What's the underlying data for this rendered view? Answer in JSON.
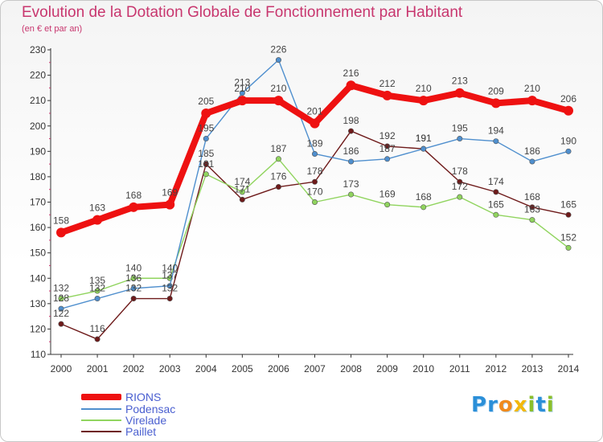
{
  "title": "Evolution de la Dotation Globale de Fonctionnement par Habitant",
  "subtitle": "(en € et par an)",
  "brand": "Proxiti",
  "colors": {
    "title": "#c8366e",
    "axis": "#333333",
    "grid": "#dddddd",
    "legend_text": "#4a5fd0"
  },
  "chart_data": {
    "type": "line",
    "title": "Evolution de la Dotation Globale de Fonctionnement par Habitant",
    "subtitle": "(en € et par an)",
    "xlabel": "",
    "ylabel": "",
    "ylim": [
      110,
      230
    ],
    "yticks": [
      110,
      120,
      130,
      140,
      150,
      160,
      170,
      180,
      190,
      200,
      210,
      220,
      230
    ],
    "grid": false,
    "legend_position": "bottom-left",
    "x": [
      "2000",
      "2001",
      "2002",
      "2003",
      "2004",
      "2005",
      "2006",
      "2007",
      "2008",
      "2009",
      "2010",
      "2011",
      "2012",
      "2013",
      "2014"
    ],
    "series": [
      {
        "name": "RIONS",
        "color": "#ee1111",
        "line_style": "thick",
        "values": [
          158,
          163,
          168,
          169,
          205,
          210,
          210,
          201,
          216,
          212,
          210,
          213,
          209,
          210,
          206
        ]
      },
      {
        "name": "Podensac",
        "color": "#4f8fce",
        "line_style": "thin",
        "values": [
          128,
          132,
          136,
          137,
          195,
          213,
          226,
          189,
          186,
          187,
          191,
          195,
          194,
          186,
          190
        ]
      },
      {
        "name": "Virelade",
        "color": "#90d45e",
        "line_style": "thin",
        "values": [
          132,
          135,
          140,
          140,
          181,
          174,
          187,
          170,
          173,
          169,
          168,
          172,
          165,
          163,
          152
        ]
      },
      {
        "name": "Paillet",
        "color": "#6e1a1a",
        "line_style": "thin",
        "values": [
          122,
          116,
          132,
          132,
          185,
          171,
          176,
          178,
          198,
          192,
          191,
          178,
          174,
          168,
          165
        ]
      }
    ]
  }
}
